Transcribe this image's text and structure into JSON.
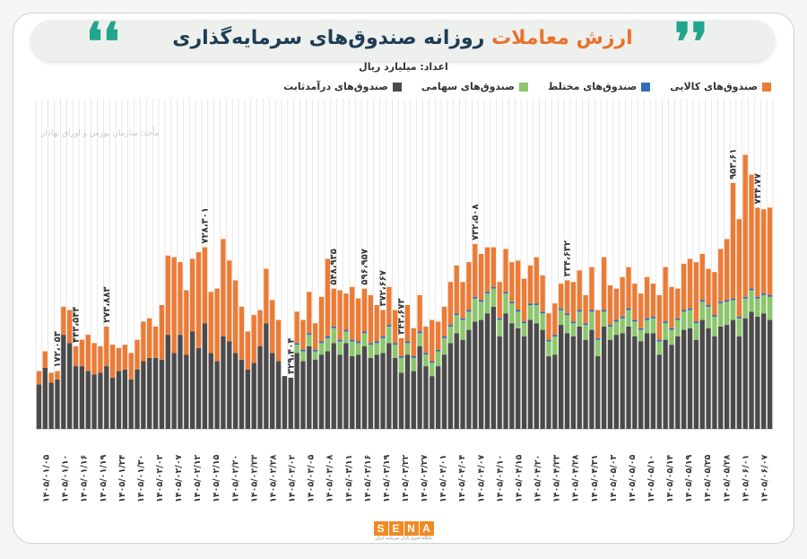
{
  "header": {
    "title_accent": "ارزش معاملات",
    "title_main": "روزانه صندوق‌های سرمایه‌گذاری",
    "subtitle": "اعداد: میلیارد ریال",
    "quote_open": "❜❜",
    "quote_close": "❛❛"
  },
  "source": "مأخذ: سازمان بورس و اوراق بهادار",
  "logo": {
    "letters": [
      "S",
      "E",
      "N",
      "A"
    ],
    "tagline": "پایگاه خبری بازار سرمایه ایران"
  },
  "colors": {
    "fixed": "#4a4a4a",
    "equity": "#8cc76b",
    "mixed": "#2f6db5",
    "commodity": "#ec7b35",
    "grid": "#d9d9d9"
  },
  "chart_data": {
    "type": "bar",
    "stacked": true,
    "legend_position": "top-right",
    "grid": true,
    "legend": [
      {
        "key": "commodity",
        "label": "صندوق‌های کالایی"
      },
      {
        "key": "mixed",
        "label": "صندوق‌های مختلط"
      },
      {
        "key": "equity",
        "label": "صندوق‌های سهامی"
      },
      {
        "key": "fixed",
        "label": "صندوق‌های درآمدثابت"
      }
    ],
    "ylim": [
      0,
      1000
    ],
    "x_labels": [
      "۱۴۰۵/۰۱/۰۵",
      "۱۴۰۵/۰۱/۱۰",
      "۱۴۰۵/۰۱/۱۶",
      "۱۴۰۵/۰۱/۱۹",
      "۱۴۰۵/۰۱/۲۴",
      "۱۴۰۵/۰۱/۳۰",
      "۱۴۰۵/۰۲/۰۲",
      "۱۴۰۵/۰۲/۰۷",
      "۱۴۰۵/۰۲/۱۲",
      "۱۴۰۵/۰۲/۱۵",
      "۱۴۰۵/۰۲/۲۰",
      "۱۴۰۵/۰۲/۲۳",
      "۱۴۰۵/۰۲/۲۸",
      "۱۴۰۵/۰۳/۰۲",
      "۱۴۰۵/۰۳/۰۵",
      "۱۴۰۵/۰۳/۰۸",
      "۱۴۰۵/۰۳/۱۱",
      "۱۴۰۵/۰۳/۱۶",
      "۱۴۰۵/۰۳/۱۹",
      "۱۴۰۵/۰۳/۲۲",
      "۱۴۰۵/۰۳/۲۷",
      "۱۴۰۵/۰۴/۰۱",
      "۱۴۰۵/۰۴/۰۴",
      "۱۴۰۵/۰۴/۰۷",
      "۱۴۰۵/۰۴/۱۰",
      "۱۴۰۵/۰۴/۱۵",
      "۱۴۰۵/۰۴/۲۰",
      "۱۴۰۵/۰۴/۲۳",
      "۱۴۰۵/۰۴/۲۸",
      "۱۴۰۵/۰۴/۳۱",
      "۱۴۰۵/۰۵/۰۳",
      "۱۴۰۵/۰۵/۰۵",
      "۱۴۰۵/۰۵/۱۰",
      "۱۴۰۵/۰۵/۱۴",
      "۱۴۰۵/۰۵/۱۹",
      "۱۴۰۵/۰۵/۲۵",
      "۱۴۰۵/۰۵/۲۸",
      "۱۴۰۵/۰۶/۰۱",
      "۱۴۰۵/۰۶/۰۷"
    ],
    "annotations": [
      {
        "bar": 3,
        "text": "۱۷۲،۰۵۳"
      },
      {
        "bar": 6,
        "text": "۴۴۳،۵۴۴"
      },
      {
        "bar": 11,
        "text": "۲۷۳،۸۸۳"
      },
      {
        "bar": 27,
        "text": "۷۲۸،۳۰۱"
      },
      {
        "bar": 41,
        "text": "۳۲۹،۴۰۴"
      },
      {
        "bar": 48,
        "text": "۵۴۸،۹۳۵"
      },
      {
        "bar": 53,
        "text": "۵۹۶،۹۵۷"
      },
      {
        "bar": 56,
        "text": "۳۷۲،۶۶۷"
      },
      {
        "bar": 59,
        "text": "۳۴۳،۶۷۳"
      },
      {
        "bar": 71,
        "text": "۷۳۲،۵۰۸"
      },
      {
        "bar": 86,
        "text": "۳۳۴،۶۳۲"
      },
      {
        "bar": 113,
        "text": "۹۵۳،۶۱"
      },
      {
        "bar": 117,
        "text": "۷۳۴،۷۷"
      }
    ],
    "series": [
      {
        "key": "fixed",
        "values": [
          135,
          185,
          140,
          150,
          285,
          260,
          190,
          190,
          175,
          165,
          170,
          190,
          155,
          175,
          180,
          150,
          180,
          205,
          215,
          215,
          210,
          285,
          230,
          285,
          225,
          295,
          245,
          320,
          230,
          205,
          280,
          265,
          230,
          210,
          180,
          200,
          250,
          320,
          230,
          205,
          160,
          155,
          230,
          205,
          250,
          210,
          225,
          235,
          260,
          225,
          260,
          220,
          225,
          250,
          215,
          225,
          230,
          260,
          215,
          170,
          225,
          175,
          250,
          190,
          160,
          190,
          225,
          260,
          290,
          270,
          300,
          325,
          330,
          350,
          370,
          280,
          350,
          320,
          305,
          280,
          330,
          320,
          300,
          220,
          225,
          315,
          290,
          280,
          310,
          270,
          300,
          220,
          310,
          270,
          285,
          290,
          310,
          280,
          265,
          290,
          290,
          225,
          270,
          255,
          280,
          300,
          305,
          270,
          330,
          305,
          280,
          310,
          315,
          330,
          280,
          335,
          355,
          340,
          350,
          330
        ]
      },
      {
        "key": "equity",
        "values": [
          0,
          0,
          0,
          0,
          0,
          0,
          0,
          0,
          0,
          0,
          0,
          0,
          0,
          0,
          0,
          0,
          0,
          0,
          0,
          0,
          0,
          0,
          0,
          0,
          0,
          0,
          0,
          0,
          0,
          0,
          0,
          0,
          0,
          0,
          0,
          0,
          0,
          0,
          0,
          0,
          0,
          0,
          25,
          30,
          35,
          25,
          35,
          40,
          45,
          40,
          35,
          45,
          35,
          40,
          40,
          35,
          45,
          50,
          40,
          45,
          35,
          40,
          40,
          35,
          40,
          45,
          50,
          50,
          55,
          60,
          55,
          70,
          55,
          60,
          55,
          50,
          60,
          60,
          50,
          40,
          45,
          55,
          50,
          45,
          55,
          45,
          55,
          40,
          45,
          45,
          55,
          50,
          45,
          40,
          40,
          45,
          50,
          45,
          35,
          40,
          45,
          40,
          50,
          45,
          50,
          55,
          55,
          50,
          55,
          65,
          60,
          70,
          70,
          60,
          55,
          60,
          65,
          55,
          55,
          70
        ]
      },
      {
        "key": "mixed",
        "values": [
          0,
          0,
          0,
          0,
          0,
          0,
          0,
          0,
          0,
          0,
          0,
          0,
          0,
          0,
          0,
          0,
          0,
          0,
          0,
          0,
          0,
          0,
          0,
          0,
          0,
          0,
          0,
          0,
          0,
          0,
          0,
          0,
          0,
          0,
          0,
          0,
          0,
          0,
          0,
          0,
          0,
          0,
          5,
          5,
          5,
          5,
          5,
          5,
          5,
          5,
          5,
          5,
          5,
          5,
          5,
          5,
          5,
          5,
          5,
          5,
          5,
          5,
          5,
          5,
          5,
          5,
          5,
          5,
          5,
          5,
          5,
          5,
          5,
          5,
          5,
          5,
          5,
          5,
          5,
          5,
          5,
          5,
          5,
          5,
          5,
          5,
          5,
          5,
          5,
          5,
          5,
          5,
          5,
          5,
          5,
          5,
          5,
          5,
          5,
          5,
          5,
          5,
          5,
          5,
          5,
          5,
          5,
          5,
          5,
          5,
          5,
          5,
          5,
          5,
          5,
          5,
          5,
          5,
          5,
          5
        ]
      },
      {
        "key": "commodity",
        "values": [
          40,
          50,
          30,
          25,
          85,
          100,
          60,
          80,
          110,
          95,
          80,
          120,
          100,
          70,
          75,
          80,
          90,
          120,
          120,
          95,
          165,
          240,
          290,
          220,
          195,
          220,
          290,
          230,
          185,
          220,
          295,
          245,
          220,
          160,
          115,
          145,
          110,
          165,
          160,
          125,
          0,
          0,
          95,
          90,
          125,
          80,
          135,
          235,
          115,
          150,
          110,
          160,
          130,
          130,
          145,
          110,
          80,
          115,
          100,
          55,
          110,
          85,
          110,
          80,
          125,
          85,
          90,
          130,
          145,
          110,
          145,
          160,
          140,
          135,
          120,
          110,
          130,
          120,
          150,
          130,
          115,
          140,
          110,
          80,
          95,
          75,
          100,
          120,
          120,
          85,
          130,
          85,
          160,
          120,
          95,
          120,
          125,
          110,
          105,
          125,
          100,
          135,
          165,
          125,
          90,
          140,
          150,
          180,
          140,
          110,
          130,
          160,
          185,
          350,
          295,
          430,
          345,
          270,
          255,
          265
        ]
      }
    ]
  }
}
